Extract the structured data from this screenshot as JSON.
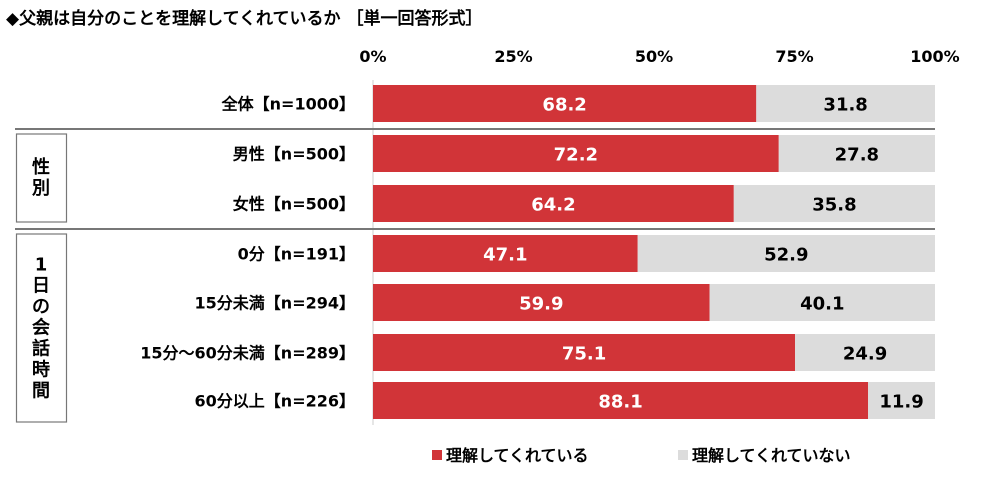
{
  "chart_data": {
    "type": "bar",
    "orientation": "horizontal-stacked-100",
    "title": "◆父親は自分のことを理解してくれているか ［単一回答形式］",
    "xlim": [
      0,
      100
    ],
    "ticks": [
      "0%",
      "25%",
      "50%",
      "75%",
      "100%"
    ],
    "categories": [
      "全体【n=1000】",
      "男性【n=500】",
      "女性【n=500】",
      "0分【n=191】",
      "15分未満【n=294】",
      "15分～60分未満【n=289】",
      "60分以上【n=226】"
    ],
    "groups": [
      {
        "label": "性別",
        "rows": [
          1,
          2
        ]
      },
      {
        "label": "1日の会話時間",
        "rows": [
          3,
          4,
          5,
          6
        ]
      }
    ],
    "series": [
      {
        "name": "理解してくれている",
        "color": "#d13438",
        "values": [
          68.2,
          72.2,
          64.2,
          47.1,
          59.9,
          75.1,
          88.1
        ]
      },
      {
        "name": "理解してくれていない",
        "color": "#dcdcdc",
        "values": [
          31.8,
          27.8,
          35.8,
          52.9,
          40.1,
          24.9,
          11.9
        ]
      }
    ],
    "legend_position": "bottom"
  }
}
